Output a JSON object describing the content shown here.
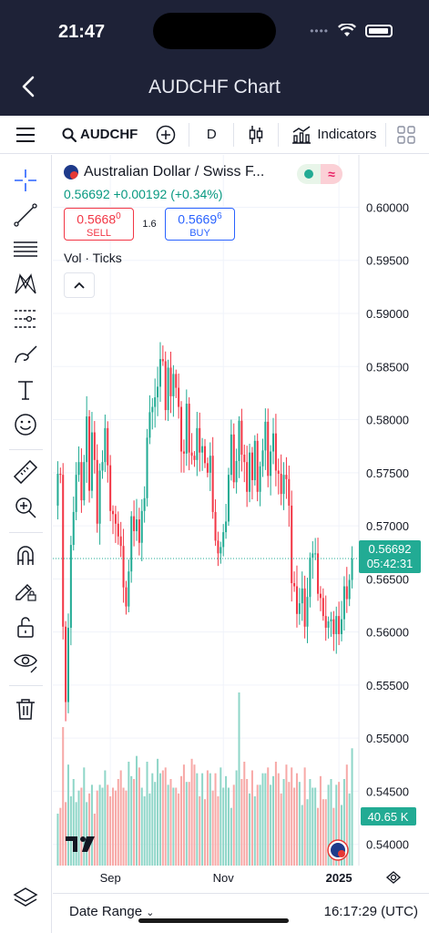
{
  "status_bar": {
    "time": "21:47"
  },
  "nav": {
    "title": "AUDCHF Chart"
  },
  "toolbar": {
    "symbol": "AUDCHF",
    "interval": "D",
    "indicators_label": "Indicators"
  },
  "legend": {
    "title": "Australian Dollar / Swiss F...",
    "last_price": "0.56692",
    "change": "+0.00192",
    "change_pct": "(+0.34%)",
    "sell_price": "0.5668",
    "sell_sup": "0",
    "sell_label": "SELL",
    "spread": "1.6",
    "buy_price": "0.5669",
    "buy_sup": "6",
    "buy_label": "BUY",
    "volume_label": "Vol · Ticks"
  },
  "price_label": {
    "price": "0.56692",
    "countdown": "05:42:31"
  },
  "volume_label": {
    "value": "40.65 K"
  },
  "bottom": {
    "date_range_label": "Date Range",
    "clock": "16:17:29 (UTC)"
  },
  "colors": {
    "up": "#22ab94",
    "down": "#f23645",
    "vol_up": "#8fd6c8",
    "vol_down": "#f7a9a7",
    "header": "#1e2237"
  },
  "chart_data": {
    "type": "candlestick",
    "y_ticks": [
      "0.60000",
      "0.59500",
      "0.59000",
      "0.58500",
      "0.58000",
      "0.57500",
      "0.57000",
      "0.56500",
      "0.56000",
      "0.55500",
      "0.55000",
      "0.54500",
      "0.54000"
    ],
    "ylim": [
      0.538,
      0.6015
    ],
    "x_ticks": [
      {
        "label": "Sep",
        "index": 20
      },
      {
        "label": "Nov",
        "index": 63
      },
      {
        "label": "2025",
        "index": 107
      }
    ],
    "last_price": 0.56692,
    "close": [
      0.5749,
      0.5748,
      0.5605,
      0.5534,
      0.5604,
      0.5682,
      0.5713,
      0.5748,
      0.576,
      0.5724,
      0.576,
      0.5803,
      0.5733,
      0.5788,
      0.5762,
      0.5702,
      0.5752,
      0.576,
      0.5792,
      0.5757,
      0.5714,
      0.5711,
      0.5702,
      0.569,
      0.5681,
      0.5642,
      0.5624,
      0.5657,
      0.5709,
      0.5695,
      0.5706,
      0.5684,
      0.5714,
      0.5726,
      0.5783,
      0.5807,
      0.5812,
      0.5821,
      0.5831,
      0.5857,
      0.5855,
      0.5809,
      0.5849,
      0.5822,
      0.5843,
      0.583,
      0.5812,
      0.577,
      0.5768,
      0.5815,
      0.5769,
      0.5766,
      0.5762,
      0.5792,
      0.5769,
      0.5775,
      0.5759,
      0.575,
      0.5766,
      0.5713,
      0.5686,
      0.5674,
      0.568,
      0.5694,
      0.5704,
      0.5748,
      0.5786,
      0.5741,
      0.5761,
      0.5799,
      0.5767,
      0.576,
      0.5732,
      0.5769,
      0.5743,
      0.578,
      0.5732,
      0.5756,
      0.5771,
      0.5798,
      0.5747,
      0.577,
      0.5787,
      0.5752,
      0.5749,
      0.573,
      0.5748,
      0.5744,
      0.5719,
      0.5646,
      0.5643,
      0.5617,
      0.5627,
      0.5641,
      0.5605,
      0.5633,
      0.567,
      0.5674,
      0.5674,
      0.5636,
      0.5632,
      0.5615,
      0.5604,
      0.561,
      0.5612,
      0.5598,
      0.5615,
      0.5598,
      0.5612,
      0.5643,
      0.5631,
      0.5649,
      0.5669
    ],
    "volume_k": [
      18,
      20,
      48,
      22,
      35,
      24,
      30,
      22,
      26,
      27,
      34,
      22,
      25,
      28,
      18,
      26,
      28,
      27,
      33,
      28,
      24,
      27,
      26,
      30,
      33,
      27,
      26,
      36,
      31,
      30,
      38,
      34,
      27,
      24,
      36,
      25,
      32,
      29,
      37,
      32,
      33,
      34,
      28,
      30,
      27,
      27,
      25,
      31,
      35,
      29,
      29,
      37,
      35,
      32,
      24,
      32,
      23,
      33,
      32,
      26,
      32,
      24,
      34,
      27,
      31,
      27,
      20,
      28,
      33,
      60,
      30,
      36,
      30,
      25,
      33,
      24,
      28,
      28,
      32,
      32,
      34,
      28,
      31,
      36,
      32,
      25,
      30,
      35,
      29,
      34,
      27,
      32,
      29,
      21,
      34,
      23,
      30,
      27,
      27,
      20,
      31,
      23,
      23,
      28,
      30,
      20,
      28,
      29,
      21,
      30,
      35,
      25,
      40.65
    ]
  }
}
